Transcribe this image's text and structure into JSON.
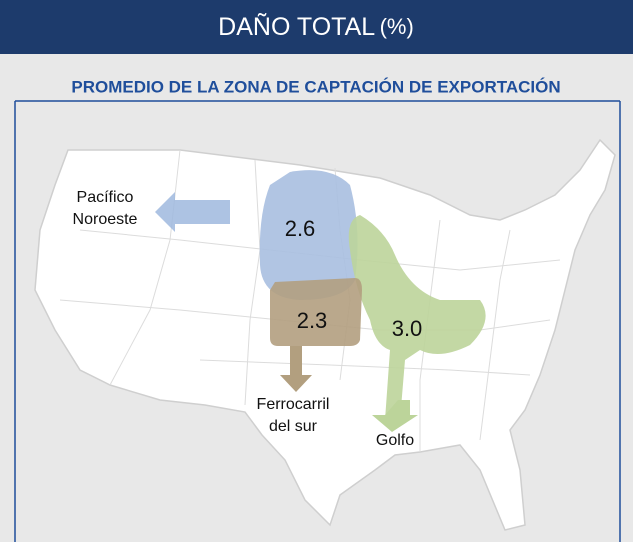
{
  "header": {
    "title": "DAÑO TOTAL",
    "unit": "(%)"
  },
  "subtitle": "PROMEDIO DE LA ZONA DE CAPTACIÓN DE EXPORTACIÓN",
  "regions": [
    {
      "value": "2.6"
    },
    {
      "value": "2.3"
    },
    {
      "value": "3.0"
    }
  ],
  "destinations": [
    {
      "lines": [
        "Pacífico",
        "Noroeste"
      ]
    },
    {
      "lines": [
        "Ferrocarril",
        "del sur"
      ]
    },
    {
      "lines": [
        "Golfo"
      ]
    }
  ]
}
